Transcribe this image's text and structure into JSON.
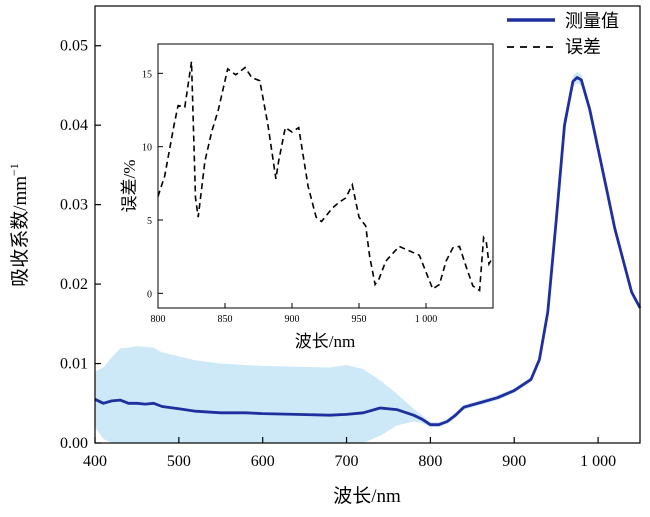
{
  "chart_data": [
    {
      "type": "line",
      "title": "",
      "xlabel": "波长/nm",
      "ylabel": "吸收系数/mm",
      "ylabel_sup": "−1",
      "xlim": [
        400,
        1050
      ],
      "ylim": [
        0,
        0.055
      ],
      "xticks": [
        400,
        500,
        600,
        700,
        800,
        900,
        1000
      ],
      "xtick_labels": [
        "400",
        "500",
        "600",
        "700",
        "800",
        "900",
        "1 000"
      ],
      "yticks": [
        0,
        0.01,
        0.02,
        0.03,
        0.04,
        0.05
      ],
      "ytick_labels": [
        "0.00",
        "0.01",
        "0.02",
        "0.03",
        "0.04",
        "0.05"
      ],
      "legend_position": "top-right",
      "legend": [
        {
          "label": "测量值",
          "style": "solid",
          "color": "#1f2f9e"
        },
        {
          "label": "误差",
          "style": "dashed",
          "color": "#000000"
        }
      ],
      "series": [
        {
          "name": "测量值",
          "color": "#1f2f9e",
          "band_color": "#cde9f8",
          "x": [
            400,
            410,
            420,
            430,
            440,
            450,
            460,
            470,
            480,
            500,
            520,
            550,
            580,
            600,
            640,
            680,
            700,
            720,
            740,
            760,
            780,
            790,
            800,
            810,
            820,
            830,
            840,
            860,
            880,
            900,
            920,
            930,
            940,
            950,
            960,
            970,
            975,
            980,
            990,
            1000,
            1010,
            1020,
            1030,
            1040,
            1050
          ],
          "y": [
            0.0055,
            0.005,
            0.0053,
            0.0054,
            0.005,
            0.005,
            0.0049,
            0.005,
            0.0046,
            0.0043,
            0.004,
            0.0038,
            0.0038,
            0.0037,
            0.0036,
            0.0035,
            0.0036,
            0.0038,
            0.0044,
            0.0042,
            0.0035,
            0.003,
            0.0023,
            0.0023,
            0.0027,
            0.0035,
            0.0045,
            0.0051,
            0.0057,
            0.0066,
            0.008,
            0.0105,
            0.0165,
            0.028,
            0.04,
            0.0455,
            0.046,
            0.0457,
            0.042,
            0.037,
            0.032,
            0.027,
            0.023,
            0.019,
            0.017
          ],
          "band": [
            0.0035,
            0.0045,
            0.0055,
            0.0065,
            0.007,
            0.0072,
            0.0072,
            0.007,
            0.0068,
            0.0066,
            0.0064,
            0.0062,
            0.006,
            0.006,
            0.006,
            0.006,
            0.0062,
            0.0055,
            0.0035,
            0.002,
            0.0008,
            0.0005,
            0.0003,
            0.0003,
            0.0003,
            0.0003,
            0.0003,
            0.0003,
            0.0003,
            0.0003,
            0.0003,
            0.0003,
            0.0004,
            0.0005,
            0.0006,
            0.0007,
            0.0007,
            0.0007,
            0.0006,
            0.0005,
            0.0004,
            0.0004,
            0.0004,
            0.0003,
            0.0003
          ]
        }
      ]
    },
    {
      "type": "line",
      "title": "",
      "xlabel": "波长/nm",
      "ylabel": "误差/%",
      "xlim": [
        800,
        1050
      ],
      "ylim": [
        -1,
        17
      ],
      "xticks": [
        800,
        850,
        900,
        950,
        1000
      ],
      "xtick_labels": [
        "800",
        "850",
        "900",
        "950",
        "1 000"
      ],
      "yticks": [
        0,
        5,
        10,
        15
      ],
      "ytick_labels": [
        "0",
        "5",
        "10",
        "15"
      ],
      "series": [
        {
          "name": "误差",
          "style": "dashed",
          "color": "#000000",
          "x": [
            800,
            805,
            812,
            815,
            820,
            825,
            828,
            830,
            835,
            840,
            845,
            852,
            858,
            865,
            870,
            876,
            882,
            888,
            890,
            895,
            900,
            905,
            912,
            918,
            922,
            930,
            935,
            940,
            945,
            950,
            955,
            958,
            962,
            965,
            970,
            980,
            990,
            995,
            1005,
            1010,
            1015,
            1020,
            1025,
            1030,
            1035,
            1040,
            1043,
            1045,
            1047,
            1050
          ],
          "y": [
            6.6,
            8.0,
            11.5,
            12.8,
            12.7,
            15.8,
            6.5,
            5.2,
            9.0,
            11.0,
            12.5,
            15.3,
            14.9,
            15.4,
            14.7,
            14.5,
            11.5,
            7.8,
            9.0,
            11.3,
            11.0,
            11.3,
            7.3,
            5.2,
            4.9,
            5.8,
            6.2,
            6.5,
            7.4,
            5.2,
            4.6,
            2.5,
            0.6,
            1.0,
            2.2,
            3.2,
            2.8,
            2.6,
            0.3,
            0.6,
            2.2,
            3.1,
            3.2,
            1.8,
            0.5,
            0.2,
            3.8,
            3.5,
            2.0,
            2.5
          ]
        }
      ]
    }
  ]
}
